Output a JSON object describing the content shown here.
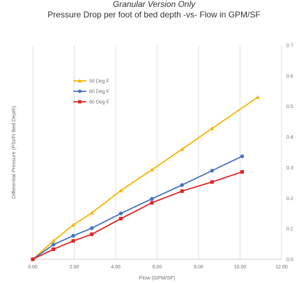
{
  "chart_data": {
    "type": "line",
    "title": "Granular Version Only",
    "subtitle": "Pressure Drop per foot of bed depth -vs- Flow in GPM/SF",
    "xlabel": "Flow (GPM/SF)",
    "ylabel": "Differential Pressure (PSI/Ft Bed Depth)",
    "xlim": [
      0,
      12
    ],
    "ylim": [
      0,
      0.7
    ],
    "x_ticks": [
      "0.00",
      "2.00",
      "4.00",
      "6.00",
      "8.00",
      "10.00",
      "12.00"
    ],
    "y_ticks": [
      "0.0",
      "0.1",
      "0.2",
      "0.3",
      "0.4",
      "0.5",
      "0.6",
      "0.7"
    ],
    "y_axis_side": "right",
    "grid": "vertical",
    "legend_position": "top-left",
    "series": [
      {
        "name": "50 Deg F",
        "color": "#f5b400",
        "marker": "triangle",
        "x": [
          0,
          1.0,
          1.95,
          2.85,
          4.25,
          5.75,
          7.2,
          8.65,
          10.85
        ],
        "y": [
          0,
          0.06,
          0.112,
          0.152,
          0.225,
          0.293,
          0.36,
          0.428,
          0.53
        ]
      },
      {
        "name": "60 Deg F",
        "color": "#4472c4",
        "marker": "circle",
        "x": [
          0,
          1.0,
          1.95,
          2.85,
          4.25,
          5.75,
          7.2,
          8.65,
          10.1
        ],
        "y": [
          0,
          0.048,
          0.077,
          0.102,
          0.15,
          0.198,
          0.243,
          0.29,
          0.337
        ]
      },
      {
        "name": "80 Deg F",
        "color": "#e02424",
        "marker": "square",
        "x": [
          0,
          1.0,
          1.95,
          2.85,
          4.25,
          5.75,
          7.2,
          8.65,
          10.1
        ],
        "y": [
          0,
          0.033,
          0.06,
          0.082,
          0.133,
          0.185,
          0.223,
          0.253,
          0.286
        ]
      }
    ]
  }
}
